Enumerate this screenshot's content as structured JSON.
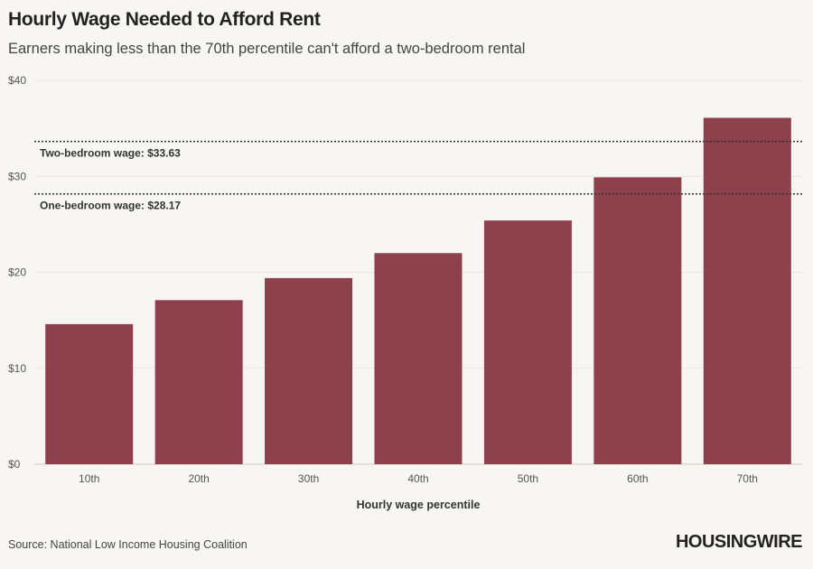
{
  "chart_data": {
    "type": "bar",
    "title": "Hourly Wage Needed to Afford Rent",
    "subtitle": "Earners making less than the 70th percentile can't afford a two-bedroom rental",
    "categories": [
      "10th",
      "20th",
      "30th",
      "40th",
      "50th",
      "60th",
      "70th"
    ],
    "values": [
      14.6,
      17.1,
      19.4,
      22.0,
      25.4,
      29.9,
      36.1
    ],
    "xlabel": "Hourly wage percentile",
    "ylabel": "",
    "ylim": [
      0,
      40
    ],
    "yticks": [
      0,
      10,
      20,
      30,
      40
    ],
    "ytick_labels": [
      "$0",
      "$10",
      "$20",
      "$30",
      "$40"
    ],
    "reference_lines": [
      {
        "label": "Two-bedroom wage: $33.63",
        "value": 33.63
      },
      {
        "label": "One-bedroom wage: $28.17",
        "value": 28.17
      }
    ],
    "bar_color": "#8e404c",
    "grid": true
  },
  "footer": {
    "source": "Source: National Low Income Housing Coalition",
    "brand": "HOUSINGWIRE"
  }
}
